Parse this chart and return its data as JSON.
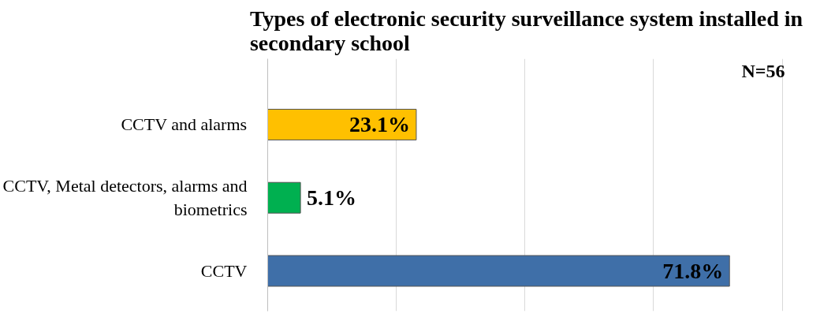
{
  "chart_data": {
    "type": "bar",
    "orientation": "horizontal",
    "title": "Types of electronic security surveillance system installed in secondary school",
    "categories": [
      "CCTV and alarms",
      "CCTV, Metal detectors, alarms and biometrics",
      "CCTV"
    ],
    "values": [
      23.1,
      5.1,
      71.8
    ],
    "value_labels": [
      "23.1%",
      "5.1%",
      "71.8%"
    ],
    "colors": [
      "#ffc000",
      "#00b050",
      "#3f6fa8"
    ],
    "tick_labels": "y",
    "grid": "x",
    "annotations": [
      "N=56"
    ]
  }
}
